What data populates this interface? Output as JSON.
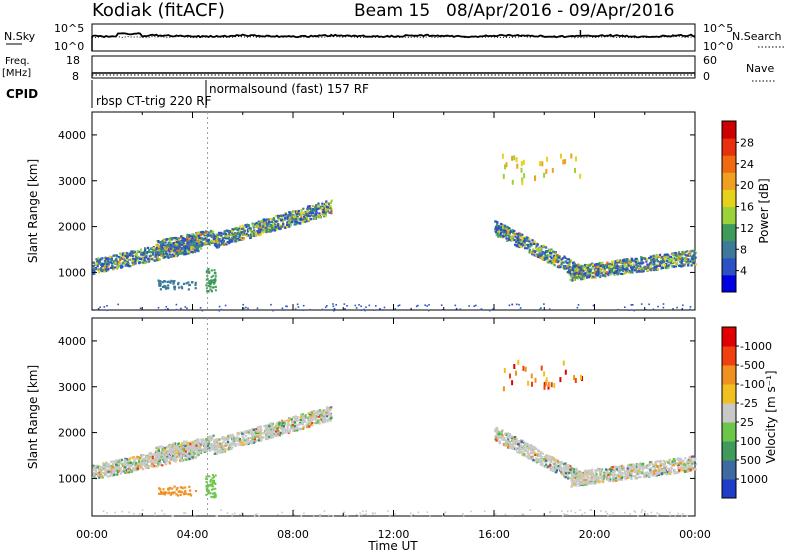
{
  "header": {
    "station": "Kodiak (fitACF)",
    "beam": "Beam 15",
    "date_range": "08/Apr/2016 - 09/Apr/2016"
  },
  "strips": {
    "nsky_label": "N.Sky",
    "nsky_ticks": [
      "10^5",
      "10^0"
    ],
    "nsearch_label": "N.Search",
    "nsearch_ticks": [
      "10^5",
      "10^0"
    ],
    "freq_label_1": "Freq.",
    "freq_label_2": "[MHz]",
    "freq_ticks": [
      "18",
      "8"
    ],
    "nave_label": "Nave",
    "nave_ticks": [
      "60",
      "0"
    ],
    "cpid_label": "CPID",
    "cpid_segments": [
      "rbsp CT-trig 220 RF",
      "normalsound (fast) 157 RF"
    ]
  },
  "chart_data": [
    {
      "type": "heatmap",
      "name": "power-panel",
      "ylabel": "Slant Range [km]",
      "ylim": [
        180,
        4500
      ],
      "yticks": [
        1000,
        2000,
        3000,
        4000
      ],
      "xlim": [
        0,
        24
      ],
      "colorbar_label": "Power [dB]",
      "colorbar_ticks": [
        "4",
        "8",
        "12",
        "16",
        "20",
        "24",
        "28"
      ],
      "colorbar_colors": [
        "#0000e0",
        "#2a52c4",
        "#3d7a9a",
        "#3f9a5c",
        "#9bd23b",
        "#e6d21c",
        "#f0a020",
        "#ef6a10",
        "#e63010",
        "#cc0000"
      ],
      "scatter_bands": [
        {
          "t0": 0.0,
          "t1": 4.3,
          "r0": 1150,
          "r1": 1650
        },
        {
          "t0": 2.5,
          "t1": 4.8,
          "r0": 1550,
          "r1": 1800
        },
        {
          "t0": 4.8,
          "t1": 9.5,
          "r0": 1700,
          "r1": 2450
        },
        {
          "t0": 16.0,
          "t1": 19.5,
          "r0": 2000,
          "r1": 1000
        },
        {
          "t0": 19.0,
          "t1": 24.0,
          "r0": 1000,
          "r1": 1350
        }
      ]
    },
    {
      "type": "heatmap",
      "name": "velocity-panel",
      "ylabel": "Slant Range [km]",
      "ylim": [
        180,
        4500
      ],
      "yticks": [
        1000,
        2000,
        3000,
        4000
      ],
      "xlim": [
        0,
        24
      ],
      "xticks": [
        "00:00",
        "04:00",
        "08:00",
        "12:00",
        "16:00",
        "20:00",
        "00:00"
      ],
      "xlabel": "Time UT",
      "colorbar_label": "Velocity [m s⁻¹]",
      "colorbar_ticks": [
        "1000",
        "500",
        "100",
        "25",
        "-25",
        "-100",
        "-500",
        "-1000"
      ],
      "colorbar_colors": [
        "#1e3cc8",
        "#3d6aa0",
        "#3f9a5c",
        "#6cc64a",
        "#c8c8c8",
        "#f0c020",
        "#f09020",
        "#f04010",
        "#e00000"
      ],
      "scatter_bands": [
        {
          "t0": 0.0,
          "t1": 4.3,
          "r0": 1150,
          "r1": 1650
        },
        {
          "t0": 2.5,
          "t1": 4.8,
          "r0": 1550,
          "r1": 1800
        },
        {
          "t0": 4.8,
          "t1": 9.5,
          "r0": 1700,
          "r1": 2450
        },
        {
          "t0": 16.0,
          "t1": 19.5,
          "r0": 2000,
          "r1": 1000
        },
        {
          "t0": 19.0,
          "t1": 24.0,
          "r0": 1000,
          "r1": 1350
        }
      ]
    }
  ]
}
